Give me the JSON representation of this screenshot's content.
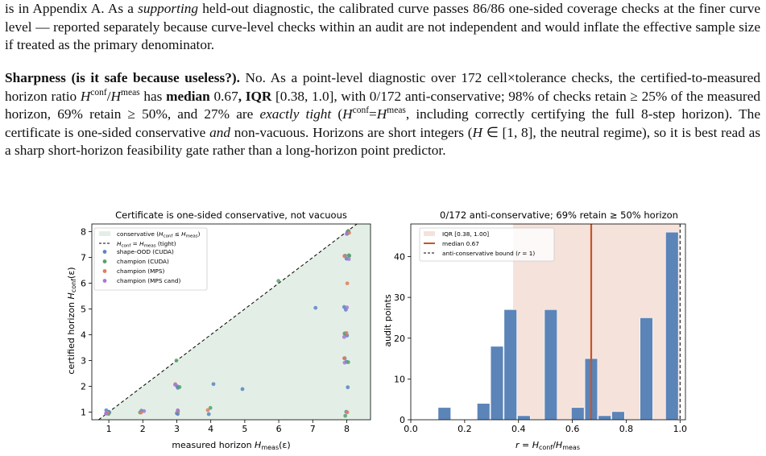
{
  "text": {
    "p1": {
      "a": "is in Appendix A. As a ",
      "a_em": "supporting",
      "b": " held-out diagnostic, the calibrated curve passes 86/86 one-sided coverage checks at the finer curve level — reported separately because curve-level checks within an audit are not independent and would inflate the effective sample size if treated as the primary denominator."
    },
    "p2": {
      "heading": "Sharpness (is it safe because useless?).",
      "a": " No. As a point-level diagnostic over 172 cell×tolerance checks, the certified-to-measured horizon ratio ",
      "hconf_H": "H",
      "hconf_sup": "conf",
      "slash": "/",
      "hmeas_H": "H",
      "hmeas_sup": "meas",
      "b": " has ",
      "median_bold": "median",
      "c": " 0.67",
      "iqr_bold": ", IQR",
      "d": " [0.38, 1.0], with 0/172 anti-conservative; 98% of checks retain ≥ 25% of the measured horizon, 69% retain ≥ 50%, and 27% are ",
      "exact_em": "exactly tight",
      "e": " (",
      "eq_H1": "H",
      "eq_sup1": "conf",
      "eq_mid": "=",
      "eq_H2": "H",
      "eq_sup2": "meas",
      "f": ", including correctly certifying the full 8-step horizon). The certificate is one-sided conservative ",
      "and_em": "and",
      "g": " non-vacuous. Horizons are short integers (",
      "range_H": "H",
      "range": " ∈ [1, 8], the neutral regime), so it is best read as a sharp short-horizon feasibility gate rather than a long-horizon point predictor."
    }
  },
  "chart_data": [
    {
      "type": "scatter",
      "title": "Certificate is one-sided conservative, not vacuous",
      "xlabel": "measured horizon H_meas(ε)",
      "ylabel": "certified horizon H_conf(ε)",
      "xlim": [
        0.5,
        8.7
      ],
      "ylim": [
        0.7,
        8.3
      ],
      "xticks": [
        "1",
        "2",
        "3",
        "4",
        "5",
        "6",
        "7",
        "8"
      ],
      "yticks": [
        "1",
        "2",
        "3",
        "4",
        "5",
        "6",
        "7",
        "8"
      ],
      "grid": false,
      "legend_position": "top-left",
      "region": {
        "label": "conservative (H_conf ≤ H_meas)",
        "color": "#e3efe6"
      },
      "diagonal": {
        "label": "H_conf = H_meas (tight)",
        "color": "#000000"
      },
      "series": [
        {
          "name": "shape-OOD (CUDA)",
          "color": "#5b84c4",
          "points": [
            [
              1,
              1
            ],
            [
              1,
              1
            ],
            [
              1,
              1
            ],
            [
              1,
              1
            ],
            [
              1,
              1
            ],
            [
              2,
              1
            ],
            [
              3,
              1
            ],
            [
              3,
              1
            ],
            [
              3,
              2
            ],
            [
              3,
              2
            ],
            [
              4,
              1
            ],
            [
              4,
              2
            ],
            [
              5,
              1.9
            ],
            [
              7,
              5.1
            ],
            [
              8,
              1
            ],
            [
              8,
              2
            ],
            [
              8,
              3
            ],
            [
              8,
              3
            ],
            [
              8,
              4
            ],
            [
              8,
              4
            ],
            [
              8,
              5
            ],
            [
              8,
              5
            ],
            [
              8,
              7
            ],
            [
              8,
              7
            ],
            [
              8,
              8
            ],
            [
              8,
              8
            ]
          ]
        },
        {
          "name": "champion (CUDA)",
          "color": "#56a06a",
          "points": [
            [
              1,
              1
            ],
            [
              1,
              1
            ],
            [
              2,
              1
            ],
            [
              3,
              1
            ],
            [
              3,
              2
            ],
            [
              3,
              3
            ],
            [
              4,
              1.1
            ],
            [
              6,
              6.1
            ],
            [
              8,
              0.9
            ],
            [
              8,
              3
            ],
            [
              8,
              4
            ],
            [
              8,
              7
            ],
            [
              8,
              7
            ],
            [
              8,
              8
            ],
            [
              8,
              8
            ]
          ]
        },
        {
          "name": "champion (MPS)",
          "color": "#e27d5b",
          "points": [
            [
              1,
              1
            ],
            [
              2,
              1
            ],
            [
              3,
              1
            ],
            [
              3,
              2
            ],
            [
              4,
              1.1
            ],
            [
              8,
              1
            ],
            [
              8,
              3
            ],
            [
              8,
              4
            ],
            [
              8,
              6
            ],
            [
              8,
              7
            ],
            [
              8,
              8
            ]
          ]
        },
        {
          "name": "champion (MPS cand)",
          "color": "#a678d6",
          "points": [
            [
              1,
              1
            ],
            [
              2,
              1
            ],
            [
              3,
              1
            ],
            [
              3,
              2
            ],
            [
              8,
              3
            ],
            [
              8,
              4
            ],
            [
              8,
              5
            ],
            [
              8,
              7
            ],
            [
              8,
              8
            ]
          ]
        }
      ]
    },
    {
      "type": "bar",
      "title": "0/172 anti-conservative; 69% retain ≥ 50% horizon",
      "xlabel": "r = H_conf/H_meas",
      "ylabel": "audit points",
      "xlim": [
        0.0,
        1.02
      ],
      "ylim": [
        0,
        48
      ],
      "xticks": [
        "0.0",
        "0.2",
        "0.4",
        "0.6",
        "0.8",
        "1.0"
      ],
      "yticks": [
        "0",
        "10",
        "20",
        "30",
        "40"
      ],
      "bar_color": "#5b84b8",
      "bin_width": 0.047,
      "bins": [
        {
          "x": 0.125,
          "value": 3
        },
        {
          "x": 0.27,
          "value": 4
        },
        {
          "x": 0.32,
          "value": 18
        },
        {
          "x": 0.37,
          "value": 27
        },
        {
          "x": 0.42,
          "value": 1
        },
        {
          "x": 0.52,
          "value": 27
        },
        {
          "x": 0.62,
          "value": 3
        },
        {
          "x": 0.67,
          "value": 15
        },
        {
          "x": 0.72,
          "value": 1
        },
        {
          "x": 0.77,
          "value": 2
        },
        {
          "x": 0.875,
          "value": 25
        },
        {
          "x": 0.97,
          "value": 46
        }
      ],
      "iqr": {
        "label": "IQR [0.38, 1.00]",
        "range": [
          0.38,
          1.0
        ],
        "color": "#f5e2da"
      },
      "median": {
        "label": "median 0.67",
        "value": 0.67,
        "color": "#c4562a"
      },
      "bound": {
        "label": "anti-conservative bound (r = 1)",
        "value": 1.0,
        "color": "#000000"
      },
      "legend_position": "top-left"
    }
  ]
}
